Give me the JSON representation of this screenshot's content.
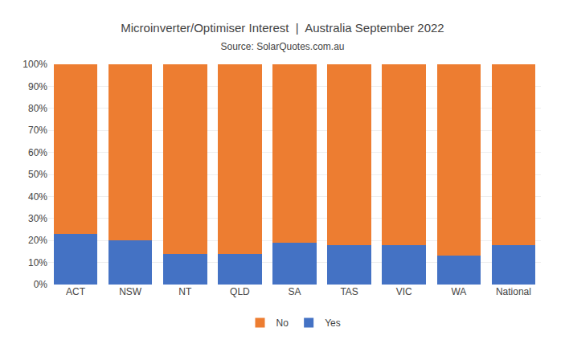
{
  "chart_data": {
    "type": "bar",
    "stacked": true,
    "title": "Microinverter/Optimiser Interest  |  Australia September 2022",
    "subtitle": "Source: SolarQuotes.com.au",
    "categories": [
      "ACT",
      "NSW",
      "NT",
      "QLD",
      "SA",
      "TAS",
      "VIC",
      "WA",
      "National"
    ],
    "series": [
      {
        "name": "Yes",
        "color": "#4472C4",
        "values": [
          23,
          20,
          14,
          14,
          19,
          18,
          18,
          13,
          18
        ]
      },
      {
        "name": "No",
        "color": "#ED7D31",
        "values": [
          77,
          80,
          86,
          86,
          81,
          82,
          82,
          87,
          82
        ]
      }
    ],
    "ylim": [
      0,
      100
    ],
    "yticks": [
      {
        "value": 0,
        "label": "0%"
      },
      {
        "value": 10,
        "label": "10%"
      },
      {
        "value": 20,
        "label": "20%"
      },
      {
        "value": 30,
        "label": "30%"
      },
      {
        "value": 40,
        "label": "40%"
      },
      {
        "value": 50,
        "label": "50%"
      },
      {
        "value": 60,
        "label": "60%"
      },
      {
        "value": 70,
        "label": "70%"
      },
      {
        "value": 80,
        "label": "80%"
      },
      {
        "value": 90,
        "label": "90%"
      },
      {
        "value": 100,
        "label": "100%"
      }
    ],
    "grid": true,
    "legend": "bottom"
  }
}
